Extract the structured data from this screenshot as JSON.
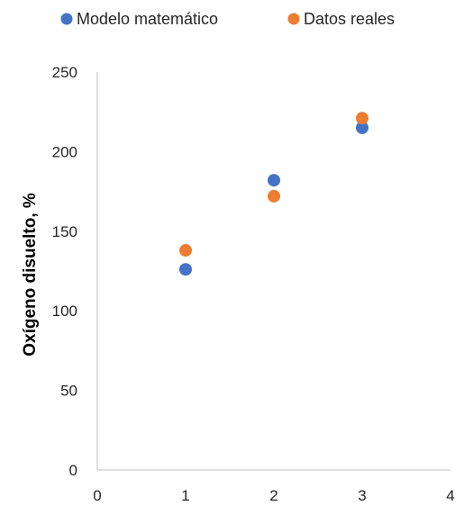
{
  "chart_data": {
    "type": "scatter",
    "title": "",
    "xlabel": "",
    "ylabel": "Oxígeno disuelto, %",
    "xlim": [
      0,
      4
    ],
    "ylim": [
      0,
      250
    ],
    "xticks": [
      0,
      1,
      2,
      3,
      4
    ],
    "yticks": [
      0,
      50,
      100,
      150,
      200,
      250
    ],
    "grid": false,
    "legend_position": "top",
    "series": [
      {
        "name": "Modelo matemático",
        "color": "#4472C4",
        "x": [
          1,
          2,
          3
        ],
        "y": [
          126,
          182,
          215
        ]
      },
      {
        "name": "Datos reales",
        "color": "#ED7D31",
        "x": [
          1,
          2,
          3
        ],
        "y": [
          138,
          172,
          221
        ]
      }
    ]
  }
}
